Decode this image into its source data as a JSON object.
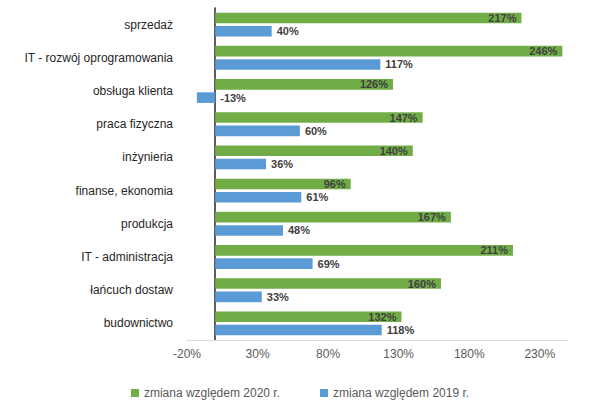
{
  "chart_data": {
    "type": "bar",
    "orientation": "horizontal",
    "categories": [
      "sprzedaż",
      "IT - rozwój oprogramowania",
      "obsługa klienta",
      "praca fizyczna",
      "inżynieria",
      "finanse, ekonomia",
      "produkcja",
      "IT - administracja",
      "łańcuch dostaw",
      "budownictwo"
    ],
    "series": [
      {
        "name": "zmiana względem 2020 r.",
        "color": "#70ad47",
        "values": [
          217,
          246,
          126,
          147,
          140,
          96,
          167,
          211,
          160,
          132
        ],
        "value_labels": [
          "217%",
          "246%",
          "126%",
          "147%",
          "140%",
          "96%",
          "167%",
          "211%",
          "160%",
          "132%"
        ]
      },
      {
        "name": "zmiana względem 2019 r.",
        "color": "#5b9bd5",
        "values": [
          40,
          117,
          -13,
          60,
          36,
          61,
          48,
          69,
          33,
          118
        ],
        "value_labels": [
          "40%",
          "117%",
          "-13%",
          "60%",
          "36%",
          "61%",
          "48%",
          "69%",
          "33%",
          "118%"
        ]
      }
    ],
    "xlim": [
      -20,
      250
    ],
    "xticks": [
      {
        "value": -20,
        "label": "-20%"
      },
      {
        "value": 30,
        "label": "30%"
      },
      {
        "value": 80,
        "label": "80%"
      },
      {
        "value": 130,
        "label": "130%"
      },
      {
        "value": 180,
        "label": "180%"
      },
      {
        "value": 230,
        "label": "230%"
      }
    ],
    "grid": false,
    "legend": "bottom",
    "data_labels": true
  }
}
